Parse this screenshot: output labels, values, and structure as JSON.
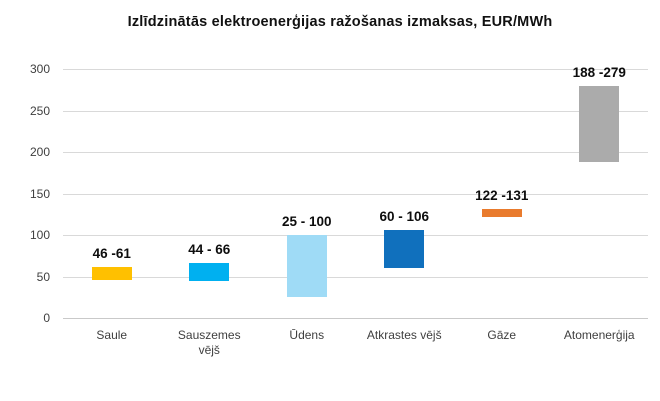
{
  "title": "Izlīdzinātās elektroenerģijas ražošanas izmaksas, EUR/MWh",
  "chart_data": {
    "type": "bar",
    "subtype": "floating-range-columns",
    "title": "Izlīdzinātās elektroenerģijas ražošanas izmaksas, EUR/MWh",
    "xlabel": "",
    "ylabel": "",
    "ylim": [
      0,
      300
    ],
    "yticks": [
      0,
      50,
      100,
      150,
      200,
      250,
      300
    ],
    "grid": "horizontal",
    "legend": "none",
    "categories": [
      "Saule",
      "Sauszemes\nvējš",
      "Ūdens",
      "Atkrastes vējš",
      "Gāze",
      "Atomenerģija"
    ],
    "series": [
      {
        "name": "izmaksu diapazons",
        "ranges": [
          {
            "low": 46,
            "high": 61
          },
          {
            "low": 44,
            "high": 66
          },
          {
            "low": 25,
            "high": 100
          },
          {
            "low": 60,
            "high": 106
          },
          {
            "low": 122,
            "high": 131
          },
          {
            "low": 188,
            "high": 279
          }
        ]
      }
    ],
    "value_labels": [
      "46 -61",
      "44 - 66",
      "25 - 100",
      "60 - 106",
      "122 -131",
      "188 -279"
    ],
    "bar_colors": [
      "#FFC000",
      "#00B0F0",
      "#9FDBF6",
      "#1070BD",
      "#E97B2D",
      "#ABABAB"
    ],
    "gridline_color": "#D9D9D9",
    "title_color": "#111111",
    "label_color": "#0D0D0D",
    "tick_color": "#3F3F3F",
    "background_color": "#FFFFFF"
  }
}
